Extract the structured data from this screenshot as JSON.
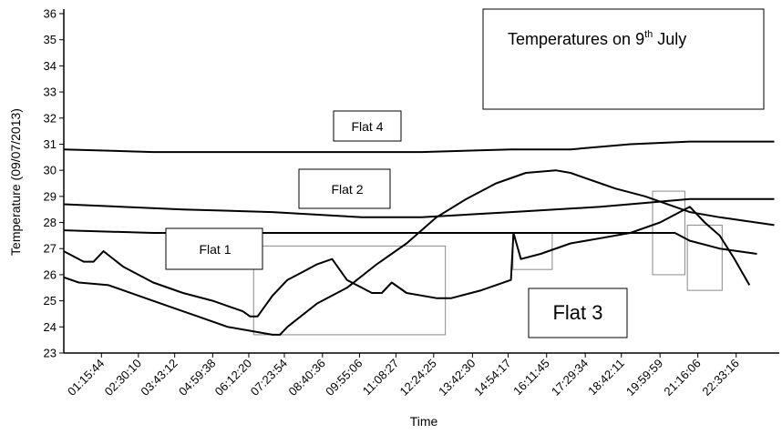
{
  "chart_data": {
    "type": "line",
    "title": "Temperatures on 9th July",
    "title_parts": {
      "pre": "Temperatures on 9",
      "sup": "th",
      "post": " July"
    },
    "xlabel": "Time",
    "ylabel": "Temperature (09/07/2013)",
    "ylim": [
      23,
      36
    ],
    "y_ticks": [
      23,
      24,
      25,
      26,
      27,
      28,
      29,
      30,
      31,
      32,
      33,
      34,
      35,
      36
    ],
    "xlim": [
      "00:00:00",
      "24:00:00"
    ],
    "x_ticks": [
      "01:15:44",
      "02:30:10",
      "03:43:12",
      "04:59:38",
      "06:12:20",
      "07:23:54",
      "08:40:36",
      "09:55:06",
      "11:08:27",
      "12:24:25",
      "13:42:30",
      "14:54:17",
      "16:11:45",
      "17:29:34",
      "18:42:11",
      "19:59:59",
      "21:16:06",
      "22:33:16"
    ],
    "grid": false,
    "legend": "none",
    "series": [
      {
        "name": "Flat 4",
        "x": [
          "00:00:00",
          "03:00:00",
          "06:00:00",
          "09:00:00",
          "12:00:00",
          "15:00:00",
          "17:00:00",
          "19:00:00",
          "21:00:00",
          "23:50:00"
        ],
        "values": [
          30.8,
          30.7,
          30.7,
          30.7,
          30.7,
          30.8,
          30.8,
          31.0,
          31.1,
          31.1
        ]
      },
      {
        "name": "Flat 2",
        "x": [
          "00:00:00",
          "04:00:00",
          "07:00:00",
          "10:00:00",
          "12:00:00",
          "15:00:00",
          "18:00:00",
          "20:00:00",
          "21:00:00",
          "23:50:00"
        ],
        "values": [
          28.7,
          28.5,
          28.4,
          28.2,
          28.2,
          28.4,
          28.6,
          28.8,
          28.9,
          28.9
        ]
      },
      {
        "name": "Flat 1",
        "x": [
          "00:00:00",
          "03:00:00",
          "06:00:00",
          "09:00:00",
          "12:00:00",
          "15:00:00",
          "16:00:00",
          "18:00:00",
          "20:30:00",
          "21:00:00",
          "22:00:00",
          "23:15:00"
        ],
        "values": [
          27.7,
          27.6,
          27.6,
          27.6,
          27.6,
          27.6,
          27.6,
          27.6,
          27.6,
          27.3,
          27.0,
          26.8
        ]
      },
      {
        "name": "Flat 3",
        "x": [
          "00:00:00",
          "00:40:00",
          "01:00:00",
          "01:20:00",
          "02:00:00",
          "03:00:00",
          "04:00:00",
          "05:00:00",
          "06:00:00",
          "06:15:00",
          "06:30:00",
          "07:00:00",
          "07:30:00",
          "08:00:00",
          "08:30:00",
          "09:00:00",
          "09:30:00",
          "10:00:00",
          "10:20:00",
          "10:40:00",
          "11:00:00",
          "11:30:00",
          "12:30:00",
          "13:00:00",
          "14:00:00",
          "15:00:00",
          "15:05:00",
          "15:20:00",
          "16:00:00",
          "17:00:00",
          "18:00:00",
          "19:00:00",
          "20:00:00",
          "20:30:00",
          "21:00:00",
          "21:30:00",
          "22:00:00",
          "22:30:00",
          "23:00:00"
        ],
        "values": [
          26.9,
          26.5,
          26.5,
          26.9,
          26.3,
          25.7,
          25.3,
          25.0,
          24.6,
          24.4,
          24.4,
          25.2,
          25.8,
          26.1,
          26.4,
          26.6,
          25.8,
          25.5,
          25.3,
          25.3,
          25.7,
          25.3,
          25.1,
          25.1,
          25.4,
          25.8,
          27.6,
          26.6,
          26.8,
          27.2,
          27.4,
          27.6,
          28.0,
          28.3,
          28.6,
          28.0,
          27.5,
          26.6,
          25.6
        ]
      },
      {
        "name": "",
        "x": [
          "00:00:00",
          "00:30:00",
          "01:30:00",
          "02:30:00",
          "03:30:00",
          "04:30:00",
          "05:30:00",
          "06:30:00",
          "07:00:00",
          "07:15:00",
          "07:30:00",
          "08:30:00",
          "09:30:00",
          "10:30:00",
          "11:30:00",
          "12:30:00",
          "13:30:00",
          "14:30:00",
          "15:30:00",
          "16:30:00",
          "17:00:00",
          "17:30:00",
          "18:00:00",
          "18:30:00",
          "19:30:00",
          "20:00:00",
          "20:30:00",
          "21:00:00",
          "22:00:00",
          "23:50:00"
        ],
        "values": [
          25.9,
          25.7,
          25.6,
          25.2,
          24.8,
          24.4,
          24.0,
          23.8,
          23.7,
          23.7,
          24.0,
          24.9,
          25.5,
          26.4,
          27.2,
          28.2,
          28.9,
          29.5,
          29.9,
          30.0,
          29.9,
          29.7,
          29.5,
          29.3,
          29.0,
          28.8,
          28.6,
          28.4,
          28.2,
          27.9
        ]
      }
    ],
    "annotations": [
      {
        "text": "Flat 4"
      },
      {
        "text": "Flat 2"
      },
      {
        "text": "Flat 1"
      },
      {
        "text": "Flat 3"
      }
    ],
    "highlight_regions": [
      {
        "x": [
          "06:22:00",
          "12:48:00"
        ],
        "y": [
          23.7,
          27.1
        ]
      },
      {
        "x": [
          "15:04:00",
          "16:23:00"
        ],
        "y": [
          26.2,
          27.6
        ]
      },
      {
        "x": [
          "19:45:00",
          "20:50:00"
        ],
        "y": [
          26.0,
          29.2
        ]
      },
      {
        "x": [
          "20:55:00",
          "22:05:00"
        ],
        "y": [
          25.4,
          27.9
        ]
      }
    ]
  }
}
